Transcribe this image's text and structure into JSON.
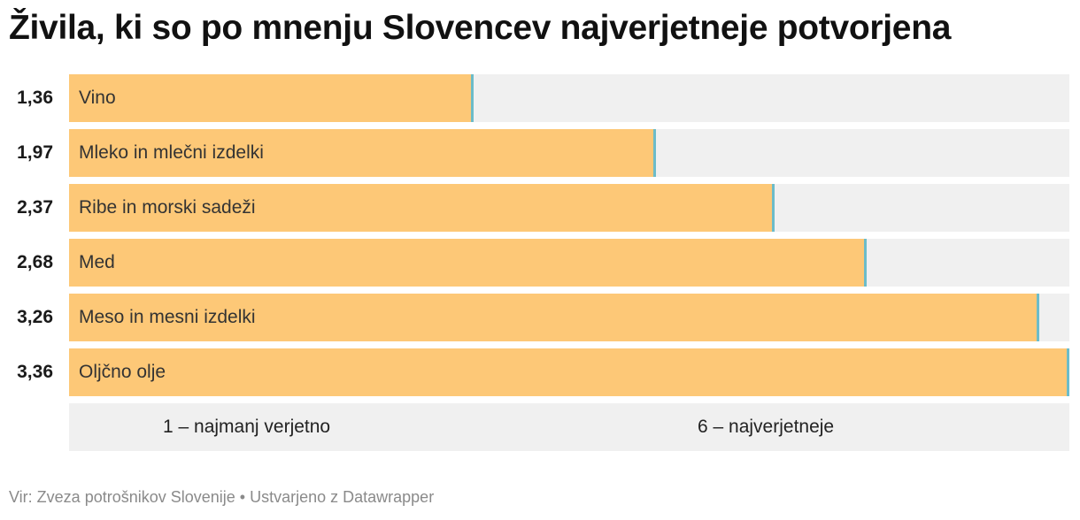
{
  "header": {
    "title": "Živila, ki so po mnenju Slovencev najverjetneje potvorjena"
  },
  "chart_data": {
    "type": "bar",
    "orientation": "horizontal",
    "title": "Živila, ki so po mnenju Slovencev najverjetneje potvorjena",
    "categories": [
      "Vino",
      "Mleko in mlečni izdelki",
      "Ribe in morski sadeži",
      "Med",
      "Meso in mesni izdelki",
      "Oljčno olje"
    ],
    "values": [
      1.36,
      1.97,
      2.37,
      2.68,
      3.26,
      3.36
    ],
    "value_labels": [
      "1,36",
      "1,97",
      "2,37",
      "2,68",
      "3,26",
      "3,36"
    ],
    "xlim": [
      0,
      3.36
    ],
    "grid": false,
    "legend": {
      "placement": "bottom",
      "min_label": "1 – najmanj verjetno",
      "max_label": "6 – najverjetneje"
    },
    "colors": {
      "bar": "#fdc877",
      "track": "#f0f0f0",
      "marker": "#6cbcc9"
    }
  },
  "footer": {
    "source": "Vir: Zveza potrošnikov Slovenije • Ustvarjeno z Datawrapper"
  }
}
